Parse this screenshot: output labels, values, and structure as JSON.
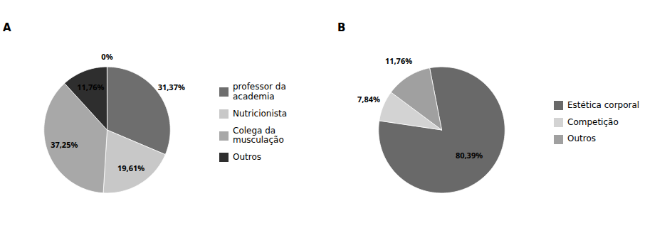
{
  "chart_data": [
    {
      "type": "pie",
      "title": "A",
      "categories": [
        "professor da\nacademia",
        "Nutricionista",
        "Colega da\nmusculação",
        "Outros",
        null
      ],
      "values": [
        31.37,
        19.61,
        37.25,
        11.76,
        0.01
      ],
      "value_labels": [
        "31,37%",
        "19,61%",
        "37,25%",
        "11,76%",
        "0%"
      ],
      "colors": [
        "#6e6e6e",
        "#c8c8c8",
        "#a8a8a8",
        "#2e2e2e",
        "#ffffff"
      ],
      "data_labels": true,
      "legend": "right"
    },
    {
      "type": "pie",
      "title": "B",
      "categories": [
        "Estética corporal",
        "Competição",
        "Outros"
      ],
      "values": [
        80.39,
        7.84,
        11.76
      ],
      "value_labels": [
        "80,39%",
        "7,84%",
        "11,76%"
      ],
      "colors": [
        "#696969",
        "#d3d3d3",
        "#a0a0a0"
      ],
      "data_labels": true,
      "legend": "right"
    }
  ]
}
